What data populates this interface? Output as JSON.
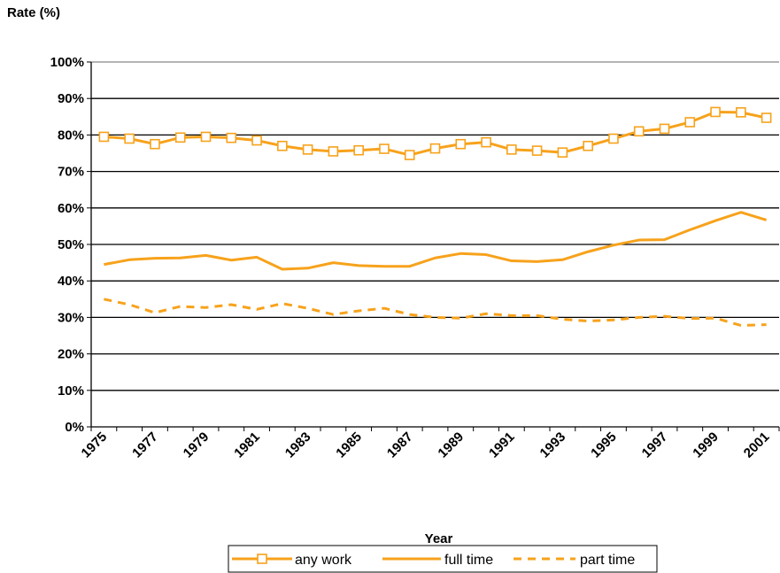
{
  "chart_data": {
    "type": "line",
    "title": "",
    "ylabel": "Rate (%)",
    "xlabel": "Year",
    "ylim": [
      0,
      100
    ],
    "yticks": [
      "0%",
      "10%",
      "20%",
      "30%",
      "40%",
      "50%",
      "60%",
      "70%",
      "80%",
      "90%",
      "100%"
    ],
    "x": [
      1975,
      1976,
      1977,
      1978,
      1979,
      1980,
      1981,
      1982,
      1983,
      1984,
      1985,
      1986,
      1987,
      1988,
      1989,
      1990,
      1991,
      1992,
      1993,
      1994,
      1995,
      1996,
      1997,
      1998,
      1999,
      2000,
      2001
    ],
    "xtick_labels": [
      "1975",
      "1977",
      "1979",
      "1981",
      "1983",
      "1985",
      "1987",
      "1989",
      "1991",
      "1993",
      "1995",
      "1997",
      "1999",
      "2001"
    ],
    "grid": true,
    "legend_position": "bottom",
    "series": [
      {
        "name": "any work",
        "color": "#F7A21B",
        "style": "solid-square-markers",
        "values": [
          79.5,
          79.0,
          77.5,
          79.3,
          79.5,
          79.2,
          78.5,
          77.0,
          76.0,
          75.5,
          75.8,
          76.2,
          74.5,
          76.3,
          77.5,
          78.0,
          76.0,
          75.7,
          75.2,
          77.0,
          79.0,
          81.0,
          81.7,
          83.5,
          86.3,
          86.2,
          84.7
        ]
      },
      {
        "name": "full time",
        "color": "#F7A21B",
        "style": "solid",
        "values": [
          44.5,
          45.8,
          46.2,
          46.3,
          47.0,
          45.7,
          46.5,
          43.2,
          43.5,
          45.0,
          44.2,
          44.0,
          44.0,
          46.3,
          47.5,
          47.2,
          45.5,
          45.3,
          45.8,
          48.0,
          49.8,
          51.2,
          51.3,
          54.0,
          56.5,
          58.8,
          56.7
        ]
      },
      {
        "name": "part time",
        "color": "#F7A21B",
        "style": "dashed",
        "values": [
          35.0,
          33.5,
          31.3,
          33.0,
          32.7,
          33.5,
          32.2,
          33.8,
          32.5,
          30.8,
          31.8,
          32.5,
          30.8,
          30.0,
          29.8,
          31.0,
          30.5,
          30.5,
          29.5,
          29.0,
          29.3,
          30.0,
          30.3,
          29.7,
          29.8,
          27.8,
          28.0
        ]
      }
    ]
  }
}
